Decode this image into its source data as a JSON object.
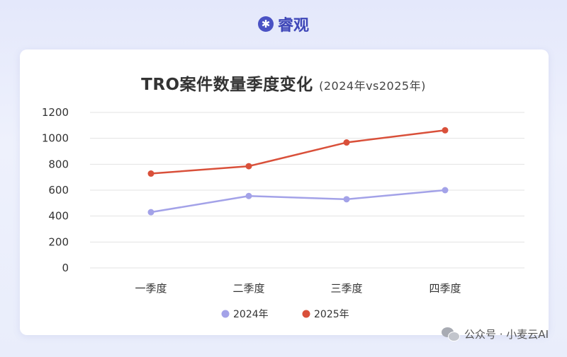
{
  "header": {
    "brand": "睿观",
    "brand_icon": "asterisk-icon"
  },
  "watermark": {
    "text": "公众号 · 小麦云AI",
    "icon": "wechat-icon"
  },
  "colors": {
    "series_2024": "#a3a2e8",
    "series_2025": "#d9503a",
    "grid": "#e3e3e3",
    "brand": "#3f47b8"
  },
  "chart_data": {
    "type": "line",
    "title": "TRO案件数量季度变化",
    "subtitle": "(2024年vs2025年)",
    "categories": [
      "一季度",
      "二季度",
      "三季度",
      "四季度"
    ],
    "series": [
      {
        "name": "2024年",
        "values": [
          430,
          555,
          530,
          600
        ]
      },
      {
        "name": "2025年",
        "values": [
          728,
          785,
          968,
          1062
        ]
      }
    ],
    "yticks": [
      0,
      200,
      400,
      600,
      800,
      1000,
      1200
    ],
    "ylim": [
      0,
      1200
    ],
    "grid": true,
    "legend": "bottom-center"
  }
}
